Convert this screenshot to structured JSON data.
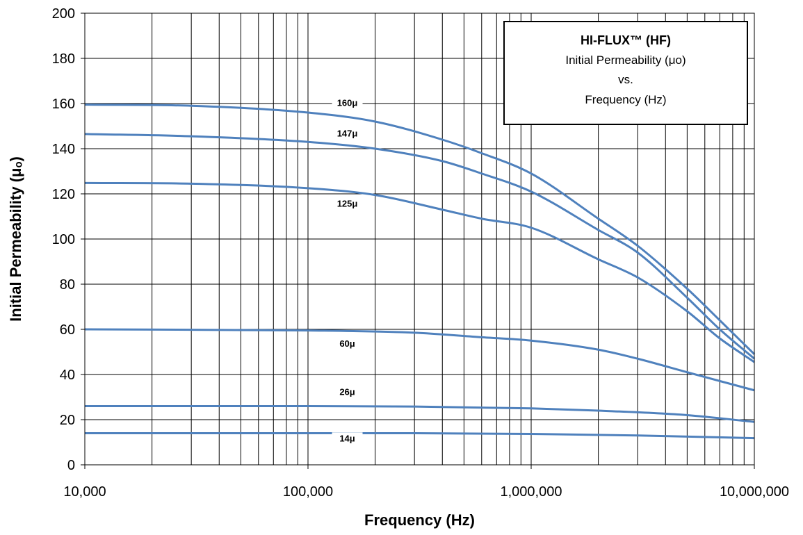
{
  "chart_data": {
    "type": "line",
    "title": "HI-FLUX™ (HF)",
    "subtitle_lines": [
      "Initial Permeability (μo)",
      "vs.",
      "Frequency (Hz)"
    ],
    "xlabel": "Frequency (Hz)",
    "ylabel": "Initial Permeability (μₒ)",
    "x_scale": "log",
    "xlim": [
      10000,
      10000000
    ],
    "ylim": [
      0,
      200
    ],
    "x_ticks": [
      10000,
      100000,
      1000000,
      10000000
    ],
    "x_tick_labels": [
      "10,000",
      "100,000",
      "1,000,000",
      "10,000,000"
    ],
    "y_ticks": [
      0,
      20,
      40,
      60,
      80,
      100,
      120,
      140,
      160,
      180,
      200
    ],
    "y_tick_labels": [
      "0",
      "20",
      "40",
      "60",
      "80",
      "100",
      "120",
      "140",
      "160",
      "180",
      "200"
    ],
    "grid": true,
    "legend": "top-right",
    "series_color": "#4f81bd",
    "series": [
      {
        "name": "160μ",
        "x": [
          10000,
          30000,
          100000,
          200000,
          400000,
          600000,
          1000000,
          2000000,
          3000000,
          5000000,
          7000000,
          10000000
        ],
        "y": [
          159.5,
          159,
          156,
          152,
          144,
          138,
          129,
          109,
          97,
          78,
          64,
          49
        ]
      },
      {
        "name": "147μ",
        "x": [
          10000,
          30000,
          100000,
          200000,
          400000,
          600000,
          1000000,
          2000000,
          3000000,
          5000000,
          7000000,
          10000000
        ],
        "y": [
          146.5,
          145.5,
          143,
          140,
          134.5,
          129,
          121,
          104,
          94,
          74,
          60,
          47
        ]
      },
      {
        "name": "125μ",
        "x": [
          10000,
          30000,
          100000,
          200000,
          400000,
          600000,
          1000000,
          2000000,
          3000000,
          5000000,
          7000000,
          10000000
        ],
        "y": [
          124.8,
          124.5,
          122.5,
          119.5,
          113,
          109,
          105,
          91,
          83,
          68,
          56,
          45.5
        ]
      },
      {
        "name": "60μ",
        "x": [
          10000,
          100000,
          300000,
          600000,
          1000000,
          2000000,
          3000000,
          5000000,
          10000000
        ],
        "y": [
          60,
          59.5,
          58.5,
          56.5,
          55,
          51,
          47,
          41,
          33
        ]
      },
      {
        "name": "26μ",
        "x": [
          10000,
          100000,
          300000,
          1000000,
          2000000,
          5000000,
          10000000
        ],
        "y": [
          26,
          26,
          25.8,
          25,
          24,
          22,
          19
        ]
      },
      {
        "name": "14μ",
        "x": [
          10000,
          100000,
          300000,
          1000000,
          3000000,
          10000000
        ],
        "y": [
          14,
          14,
          14,
          13.7,
          13,
          11.8
        ]
      }
    ],
    "curve_labels": [
      {
        "text": "160μ",
        "x": 150000,
        "y": 159.5
      },
      {
        "text": "147μ",
        "x": 150000,
        "y": 146
      },
      {
        "text": "125μ",
        "x": 150000,
        "y": 115
      },
      {
        "text": "60μ",
        "x": 150000,
        "y": 53
      },
      {
        "text": "26μ",
        "x": 150000,
        "y": 31.5
      },
      {
        "text": "14μ",
        "x": 150000,
        "y": 11
      }
    ]
  }
}
